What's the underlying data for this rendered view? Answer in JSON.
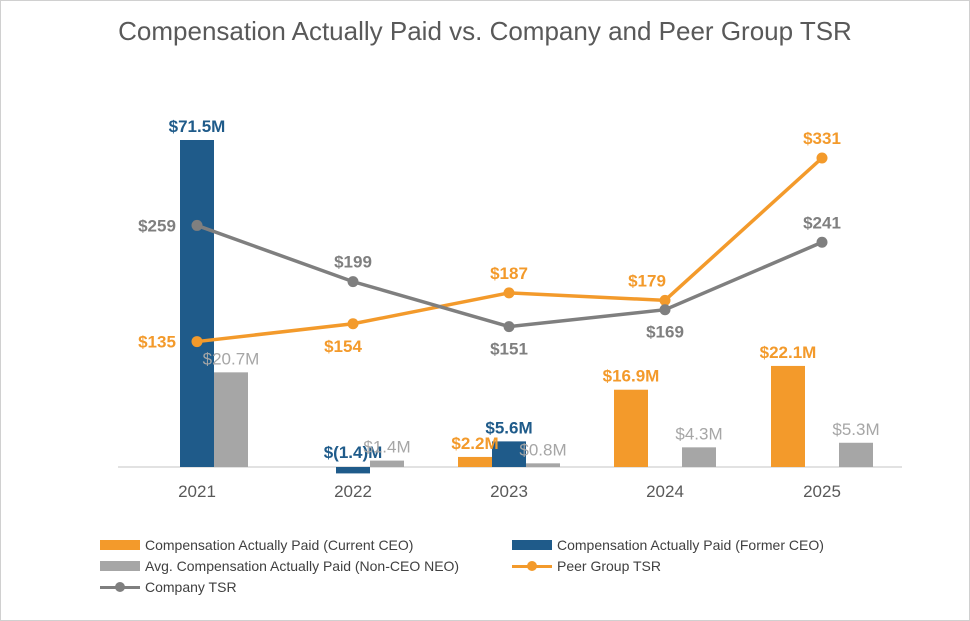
{
  "chart_data": {
    "type": "bar",
    "title": "Compensation Actually Paid vs. Company and Peer Group TSR",
    "categories": [
      "2021",
      "2022",
      "2023",
      "2024",
      "2025"
    ],
    "bar_series": [
      {
        "name": "Compensation Actually Paid (Current CEO)",
        "color": "#F39A2B",
        "values": [
          null,
          null,
          2.2,
          16.9,
          22.1
        ],
        "labels": [
          null,
          null,
          "$2.2M",
          "$16.9M",
          "$22.1M"
        ]
      },
      {
        "name": "Compensation Actually Paid (Former CEO)",
        "color": "#1F5B8A",
        "values": [
          71.5,
          -1.4,
          5.6,
          null,
          null
        ],
        "labels": [
          "$71.5M",
          "$(1.4)M",
          "$5.6M",
          null,
          null
        ]
      },
      {
        "name": "Avg. Compensation Actually Paid (Non-CEO NEO)",
        "color": "#A6A6A6",
        "values": [
          20.7,
          1.4,
          0.8,
          4.3,
          5.3
        ],
        "labels": [
          "$20.7M",
          "$1.4M",
          "$0.8M",
          "$4.3M",
          "$5.3M"
        ]
      }
    ],
    "line_series": [
      {
        "name": "Peer Group TSR",
        "color": "#F39A2B",
        "values": [
          135,
          154,
          187,
          179,
          331
        ],
        "labels": [
          "$135",
          "$154",
          "$187",
          "$179",
          "$331"
        ]
      },
      {
        "name": "Company TSR",
        "color": "#7F7F7F",
        "values": [
          259,
          199,
          151,
          169,
          241
        ],
        "labels": [
          "$259",
          "$199",
          "$151",
          "$169",
          "$241"
        ]
      }
    ],
    "bar_axis": {
      "min": 0,
      "max": 71.5,
      "unit": "$M"
    },
    "line_axis": {
      "min": 0,
      "max": 331,
      "unit": "$"
    },
    "grid": false,
    "legend_position": "bottom"
  }
}
